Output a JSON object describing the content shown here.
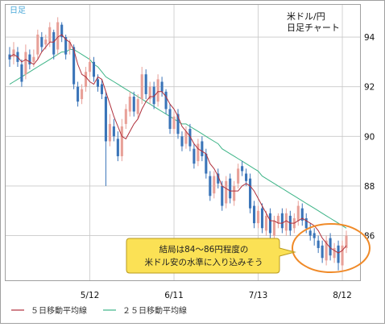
{
  "chart_data": {
    "type": "candlestick",
    "period_label": "日足",
    "title_lines": [
      "米ドル/円",
      "日足チャート"
    ],
    "y_ticks": [
      86,
      88,
      90,
      92,
      94
    ],
    "ylim": [
      84.2,
      95.3
    ],
    "x_ticks": [
      {
        "label": "5/12",
        "index": 20
      },
      {
        "label": "6/11",
        "index": 41
      },
      {
        "label": "7/13",
        "index": 62
      },
      {
        "label": "8/12",
        "index": 83
      }
    ],
    "n_bars": 85,
    "colors": {
      "up": "#e8a098",
      "down": "#3a74b8",
      "ma5": "#b0303c",
      "ma25": "#3db487",
      "grid": "#c8c8c8",
      "frame": "#a0a0a0",
      "annotation_fill": "#fbe155",
      "annotation_border": "#b89a1e",
      "highlight": "#f08a28",
      "period_label": "#4aa8d8"
    },
    "legend": [
      {
        "key": "ma5",
        "label": "５日移動平均線"
      },
      {
        "key": "ma25",
        "label": "２５日移動平均線"
      }
    ],
    "annotation": {
      "lines": [
        "結局は84～86円程度の",
        "米ドル安の水準に入り込みそう"
      ]
    },
    "close": [
      93.1,
      93.5,
      93.0,
      92.2,
      93.4,
      92.9,
      93.2,
      94.1,
      93.6,
      93.9,
      94.4,
      93.3,
      94.6,
      94.0,
      93.3,
      93.8,
      92.1,
      91.4,
      91.9,
      92.6,
      93.0,
      92.4,
      92.0,
      91.7,
      89.8,
      90.5,
      90.0,
      89.2,
      90.4,
      91.1,
      91.6,
      91.0,
      91.5,
      92.5,
      91.7,
      92.0,
      91.3,
      92.3,
      91.8,
      91.1,
      90.3,
      90.8,
      90.1,
      89.6,
      90.2,
      89.6,
      88.9,
      89.7,
      89.2,
      88.5,
      87.6,
      88.4,
      88.1,
      87.2,
      88.2,
      87.5,
      88.0,
      88.7,
      88.6,
      88.2,
      87.1,
      86.5,
      87.0,
      86.3,
      86.8,
      86.1,
      86.6,
      86.8,
      86.3,
      86.9,
      86.2,
      86.7,
      87.2,
      86.6,
      86.3,
      86.0,
      85.9,
      85.5,
      85.1,
      85.8,
      85.2,
      85.5,
      84.9,
      85.6,
      86.0
    ],
    "open": [
      93.3,
      93.2,
      93.4,
      92.9,
      92.5,
      93.3,
      93.0,
      93.3,
      94.0,
      93.7,
      93.8,
      94.2,
      93.5,
      94.5,
      94.0,
      93.5,
      93.6,
      92.0,
      91.5,
      92.0,
      92.6,
      93.0,
      92.3,
      92.1,
      91.6,
      89.8,
      90.4,
      89.9,
      89.2,
      90.5,
      91.0,
      91.6,
      90.9,
      91.5,
      92.5,
      91.5,
      92.0,
      91.4,
      92.2,
      91.8,
      91.1,
      90.3,
      90.9,
      90.0,
      89.7,
      90.3,
      89.5,
      89.0,
      89.8,
      89.3,
      88.4,
      87.7,
      88.5,
      88.0,
      87.3,
      88.3,
      87.4,
      88.1,
      88.8,
      88.5,
      88.3,
      87.2,
      86.5,
      87.1,
      86.2,
      86.9,
      86.0,
      86.5,
      86.9,
      86.2,
      86.8,
      86.3,
      86.6,
      87.1,
      86.7,
      86.2,
      86.1,
      85.8,
      85.6,
      85.0,
      85.9,
      85.1,
      85.6,
      84.8,
      85.5
    ],
    "high": [
      93.6,
      93.8,
      93.6,
      93.1,
      93.7,
      93.5,
      93.5,
      94.3,
      94.2,
      94.1,
      94.6,
      94.3,
      94.8,
      94.6,
      94.1,
      93.9,
      93.7,
      92.2,
      92.1,
      92.8,
      93.2,
      93.2,
      92.5,
      92.3,
      91.8,
      90.9,
      90.7,
      90.2,
      90.7,
      91.3,
      91.8,
      91.8,
      91.7,
      92.8,
      92.7,
      92.2,
      92.2,
      92.5,
      92.4,
      91.9,
      91.3,
      91.0,
      91.1,
      90.2,
      90.4,
      90.5,
      89.7,
      89.9,
      90.0,
      89.5,
      88.6,
      88.6,
      88.7,
      88.2,
      88.4,
      88.5,
      88.2,
      88.9,
      89.0,
      88.7,
      88.5,
      87.4,
      87.2,
      87.3,
      87.0,
      87.1,
      86.8,
      86.9,
      87.1,
      87.1,
      87.0,
      86.9,
      87.4,
      87.3,
      86.9,
      86.5,
      86.3,
      86.0,
      85.8,
      86.0,
      86.1,
      85.7,
      85.8,
      85.8,
      86.2
    ],
    "low": [
      92.8,
      92.9,
      92.8,
      92.0,
      92.3,
      92.7,
      92.8,
      93.1,
      93.4,
      93.5,
      93.6,
      93.1,
      93.3,
      93.8,
      93.1,
      93.3,
      91.9,
      91.2,
      91.3,
      91.8,
      92.4,
      92.2,
      91.8,
      91.5,
      88.0,
      89.6,
      89.8,
      89.0,
      89.0,
      90.3,
      90.8,
      90.8,
      90.7,
      91.3,
      91.5,
      91.3,
      91.1,
      91.2,
      91.6,
      90.9,
      90.1,
      90.1,
      89.9,
      89.4,
      89.5,
      89.4,
      88.7,
      88.8,
      89.0,
      88.3,
      87.4,
      87.5,
      87.9,
      87.0,
      87.1,
      87.3,
      87.2,
      87.9,
      88.4,
      88.0,
      86.9,
      86.3,
      86.3,
      86.1,
      86.0,
      85.9,
      85.8,
      86.3,
      86.1,
      86.0,
      86.0,
      86.1,
      86.4,
      86.4,
      86.1,
      85.8,
      85.6,
      85.3,
      84.9,
      84.8,
      85.0,
      84.9,
      84.6,
      84.6,
      85.3
    ],
    "ma5": [
      93.2,
      93.3,
      93.2,
      93.0,
      93.1,
      93.0,
      92.9,
      93.1,
      93.4,
      93.6,
      93.8,
      93.8,
      94.0,
      94.1,
      93.9,
      93.8,
      93.5,
      92.9,
      92.5,
      92.4,
      92.2,
      92.1,
      92.4,
      92.3,
      91.8,
      91.3,
      90.8,
      90.4,
      90.0,
      89.9,
      90.2,
      90.5,
      90.7,
      91.1,
      91.4,
      91.6,
      91.6,
      91.8,
      91.8,
      91.6,
      91.3,
      91.1,
      90.8,
      90.4,
      90.2,
      90.0,
      89.7,
      89.5,
      89.4,
      89.3,
      88.9,
      88.7,
      88.4,
      88.0,
      87.9,
      87.8,
      87.8,
      87.8,
      88.0,
      88.1,
      88.0,
      87.8,
      87.5,
      87.2,
      86.9,
      86.6,
      86.6,
      86.5,
      86.5,
      86.6,
      86.5,
      86.5,
      86.6,
      86.7,
      86.6,
      86.5,
      86.4,
      86.2,
      85.9,
      85.7,
      85.5,
      85.4,
      85.3,
      85.4,
      85.6
    ],
    "ma25": [
      92.1,
      92.2,
      92.3,
      92.4,
      92.5,
      92.6,
      92.7,
      92.8,
      92.9,
      93.0,
      93.1,
      93.2,
      93.3,
      93.4,
      93.4,
      93.5,
      93.5,
      93.4,
      93.3,
      93.2,
      93.1,
      92.9,
      92.8,
      92.6,
      92.4,
      92.3,
      92.2,
      92.1,
      92.0,
      91.9,
      91.8,
      91.7,
      91.6,
      91.5,
      91.4,
      91.3,
      91.2,
      91.1,
      91.0,
      90.9,
      90.8,
      90.7,
      90.6,
      90.5,
      90.5,
      90.4,
      90.3,
      90.2,
      90.1,
      90.0,
      89.9,
      89.8,
      89.7,
      89.5,
      89.4,
      89.3,
      89.2,
      89.1,
      89.0,
      88.9,
      88.8,
      88.7,
      88.6,
      88.4,
      88.3,
      88.2,
      88.1,
      88.0,
      87.9,
      87.8,
      87.7,
      87.6,
      87.5,
      87.4,
      87.3,
      87.2,
      87.1,
      87.0,
      86.9,
      86.8,
      86.7,
      86.6,
      86.5,
      86.4,
      86.3
    ]
  }
}
